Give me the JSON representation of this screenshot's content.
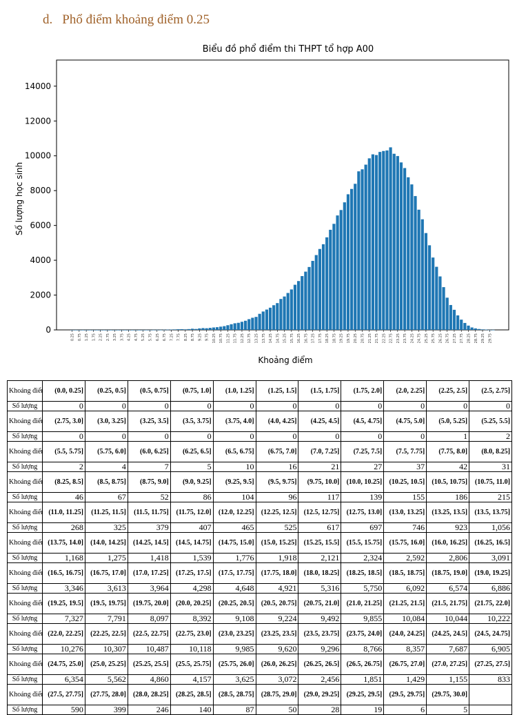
{
  "heading": {
    "label": "d.",
    "text": "Phổ điểm khoảng điểm 0.25"
  },
  "chart_data": {
    "type": "bar",
    "title": "Biểu đồ phổ điểm thi THPT tổ hợp A00",
    "xlabel": "Khoảng điểm",
    "ylabel": "Số lượng học sinh",
    "ylim": [
      0,
      15500
    ],
    "yticks": [
      0,
      2000,
      4000,
      6000,
      8000,
      10000,
      12000,
      14000
    ],
    "color": "#1f77b4",
    "bin_width": 0.25,
    "x_range": [
      0,
      30
    ],
    "values": [
      0,
      0,
      0,
      0,
      0,
      0,
      0,
      0,
      0,
      0,
      0,
      0,
      0,
      0,
      0,
      0,
      0,
      0,
      0,
      0,
      1,
      2,
      2,
      4,
      7,
      5,
      10,
      16,
      21,
      27,
      37,
      42,
      31,
      46,
      67,
      52,
      86,
      104,
      96,
      117,
      139,
      155,
      186,
      215,
      268,
      325,
      379,
      407,
      465,
      525,
      617,
      697,
      746,
      923,
      1056,
      1168,
      1275,
      1418,
      1539,
      1776,
      1918,
      2121,
      2324,
      2592,
      2806,
      3091,
      3346,
      3613,
      3964,
      4298,
      4648,
      4921,
      5316,
      5750,
      6092,
      6574,
      6886,
      7327,
      7791,
      8097,
      8392,
      9108,
      9224,
      9492,
      9855,
      10084,
      10044,
      10222,
      10276,
      10307,
      10487,
      10118,
      9985,
      9620,
      9296,
      8766,
      8357,
      7687,
      6905,
      6354,
      5562,
      4860,
      4157,
      3625,
      3072,
      2456,
      1851,
      1429,
      1155,
      833,
      590,
      399,
      246,
      140,
      87,
      50,
      28,
      19,
      6,
      5
    ]
  },
  "table": {
    "range_header": "Khoảng điểm",
    "count_header": "Số lượng",
    "rows": [
      {
        "ranges": [
          "(0.0, 0.25]",
          "(0.25, 0.5]",
          "(0.5, 0.75]",
          "(0.75, 1.0]",
          "(1.0, 1.25]",
          "(1.25, 1.5]",
          "(1.5, 1.75]",
          "(1.75, 2.0]",
          "(2.0, 2.25]",
          "(2.25, 2.5]",
          "(2.5, 2.75]"
        ],
        "counts": [
          "0",
          "0",
          "0",
          "0",
          "0",
          "0",
          "0",
          "0",
          "0",
          "0",
          "0"
        ]
      },
      {
        "ranges": [
          "(2.75, 3.0]",
          "(3.0, 3.25]",
          "(3.25, 3.5]",
          "(3.5, 3.75]",
          "(3.75, 4.0]",
          "(4.0, 4.25]",
          "(4.25, 4.5]",
          "(4.5, 4.75]",
          "(4.75, 5.0]",
          "(5.0, 5.25]",
          "(5.25, 5.5]"
        ],
        "counts": [
          "0",
          "0",
          "0",
          "0",
          "0",
          "0",
          "0",
          "0",
          "0",
          "1",
          "2"
        ]
      },
      {
        "ranges": [
          "(5.5, 5.75]",
          "(5.75, 6.0]",
          "(6.0, 6.25]",
          "(6.25, 6.5]",
          "(6.5, 6.75]",
          "(6.75, 7.0]",
          "(7.0, 7.25]",
          "(7.25, 7.5]",
          "(7.5, 7.75]",
          "(7.75, 8.0]",
          "(8.0, 8.25]"
        ],
        "counts": [
          "2",
          "4",
          "7",
          "5",
          "10",
          "16",
          "21",
          "27",
          "37",
          "42",
          "31"
        ]
      },
      {
        "ranges": [
          "(8.25, 8.5]",
          "(8.5, 8.75]",
          "(8.75, 9.0]",
          "(9.0, 9.25]",
          "(9.25, 9.5]",
          "(9.5, 9.75]",
          "(9.75, 10.0]",
          "(10.0, 10.25]",
          "(10.25, 10.5]",
          "(10.5, 10.75]",
          "(10.75, 11.0]"
        ],
        "counts": [
          "46",
          "67",
          "52",
          "86",
          "104",
          "96",
          "117",
          "139",
          "155",
          "186",
          "215"
        ]
      },
      {
        "ranges": [
          "(11.0, 11.25]",
          "(11.25, 11.5]",
          "(11.5, 11.75]",
          "(11.75, 12.0]",
          "(12.0, 12.25]",
          "(12.25, 12.5]",
          "(12.5, 12.75]",
          "(12.75, 13.0]",
          "(13.0, 13.25]",
          "(13.25, 13.5]",
          "(13.5, 13.75]"
        ],
        "counts": [
          "268",
          "325",
          "379",
          "407",
          "465",
          "525",
          "617",
          "697",
          "746",
          "923",
          "1,056"
        ]
      },
      {
        "ranges": [
          "(13.75, 14.0]",
          "(14.0, 14.25]",
          "(14.25, 14.5]",
          "(14.5, 14.75]",
          "(14.75, 15.0]",
          "(15.0, 15.25]",
          "(15.25, 15.5]",
          "(15.5, 15.75]",
          "(15.75, 16.0]",
          "(16.0, 16.25]",
          "(16.25, 16.5]"
        ],
        "counts": [
          "1,168",
          "1,275",
          "1,418",
          "1,539",
          "1,776",
          "1,918",
          "2,121",
          "2,324",
          "2,592",
          "2,806",
          "3,091"
        ]
      },
      {
        "ranges": [
          "(16.5, 16.75]",
          "(16.75, 17.0]",
          "(17.0, 17.25]",
          "(17.25, 17.5]",
          "(17.5, 17.75]",
          "(17.75, 18.0]",
          "(18.0, 18.25]",
          "(18.25, 18.5]",
          "(18.5, 18.75]",
          "(18.75, 19.0]",
          "(19.0, 19.25]"
        ],
        "counts": [
          "3,346",
          "3,613",
          "3,964",
          "4,298",
          "4,648",
          "4,921",
          "5,316",
          "5,750",
          "6,092",
          "6,574",
          "6,886"
        ]
      },
      {
        "ranges": [
          "(19.25, 19.5]",
          "(19.5, 19.75]",
          "(19.75, 20.0]",
          "(20.0, 20.25]",
          "(20.25, 20.5]",
          "(20.5, 20.75]",
          "(20.75, 21.0]",
          "(21.0, 21.25]",
          "(21.25, 21.5]",
          "(21.5, 21.75]",
          "(21.75, 22.0]"
        ],
        "counts": [
          "7,327",
          "7,791",
          "8,097",
          "8,392",
          "9,108",
          "9,224",
          "9,492",
          "9,855",
          "10,084",
          "10,044",
          "10,222"
        ]
      },
      {
        "ranges": [
          "(22.0, 22.25]",
          "(22.25, 22.5]",
          "(22.5, 22.75]",
          "(22.75, 23.0]",
          "(23.0, 23.25]",
          "(23.25, 23.5]",
          "(23.5, 23.75]",
          "(23.75, 24.0]",
          "(24.0, 24.25]",
          "(24.25, 24.5]",
          "(24.5, 24.75]"
        ],
        "counts": [
          "10,276",
          "10,307",
          "10,487",
          "10,118",
          "9,985",
          "9,620",
          "9,296",
          "8,766",
          "8,357",
          "7,687",
          "6,905"
        ]
      },
      {
        "ranges": [
          "(24.75, 25.0]",
          "(25.0, 25.25]",
          "(25.25, 25.5]",
          "(25.5, 25.75]",
          "(25.75, 26.0]",
          "(26.0, 26.25]",
          "(26.25, 26.5]",
          "(26.5, 26.75]",
          "(26.75, 27.0]",
          "(27.0, 27.25]",
          "(27.25, 27.5]"
        ],
        "counts": [
          "6,354",
          "5,562",
          "4,860",
          "4,157",
          "3,625",
          "3,072",
          "2,456",
          "1,851",
          "1,429",
          "1,155",
          "833"
        ]
      },
      {
        "ranges": [
          "(27.5, 27.75]",
          "(27.75, 28.0]",
          "(28.0, 28.25]",
          "(28.25, 28.5]",
          "(28.5, 28.75]",
          "(28.75, 29.0]",
          "(29.0, 29.25]",
          "(29.25, 29.5]",
          "(29.5, 29.75]",
          "(29.75, 30.0]",
          ""
        ],
        "counts": [
          "590",
          "399",
          "246",
          "140",
          "87",
          "50",
          "28",
          "19",
          "6",
          "5",
          ""
        ]
      }
    ]
  }
}
